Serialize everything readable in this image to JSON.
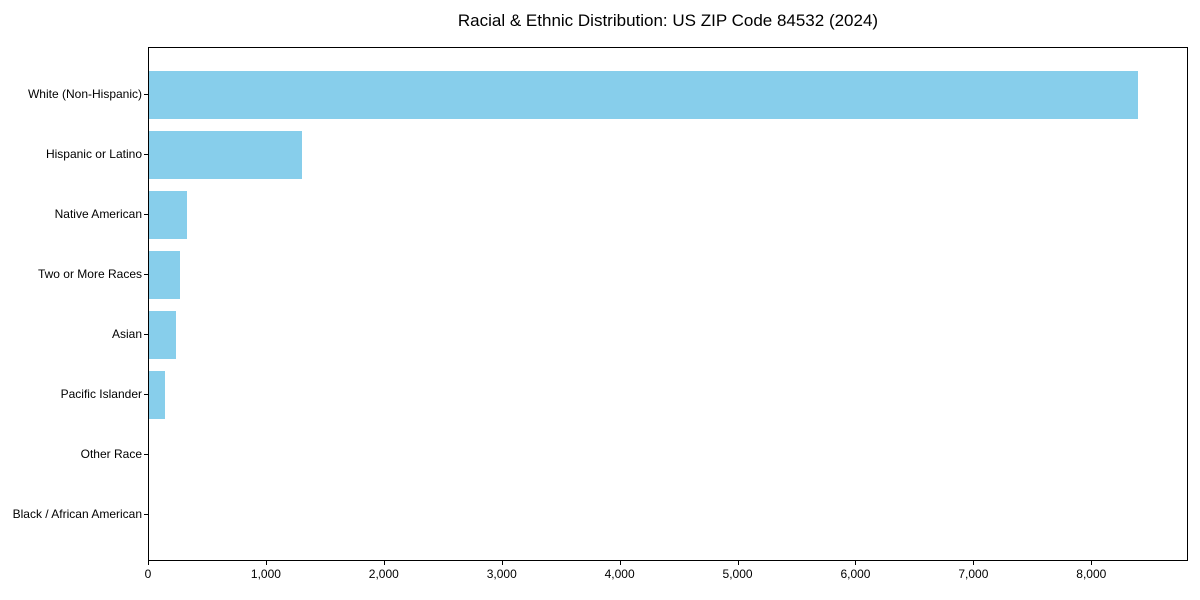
{
  "chart_data": {
    "type": "bar",
    "orientation": "horizontal",
    "title": "Racial & Ethnic Distribution: US ZIP Code 84532 (2024)",
    "categories": [
      "White (Non-Hispanic)",
      "Hispanic or Latino",
      "Native American",
      "Two or More Races",
      "Asian",
      "Pacific Islander",
      "Other Race",
      "Black / African American"
    ],
    "values": [
      8400,
      1300,
      320,
      260,
      230,
      140,
      0,
      0
    ],
    "category_order": "top-to-bottom",
    "xlabel": "",
    "ylabel": "",
    "xlim": [
      0,
      8820
    ],
    "xticks": {
      "values": [
        0,
        1000,
        2000,
        3000,
        4000,
        5000,
        6000,
        7000,
        8000
      ],
      "labels": [
        "0",
        "1,000",
        "2,000",
        "3,000",
        "4,000",
        "5,000",
        "6,000",
        "7,000",
        "8,000"
      ]
    },
    "grid": false,
    "legend": "none",
    "bar_color": "#87CEEB",
    "axis_color": "#000000",
    "text_color": "#000000",
    "background_color": "#ffffff"
  }
}
